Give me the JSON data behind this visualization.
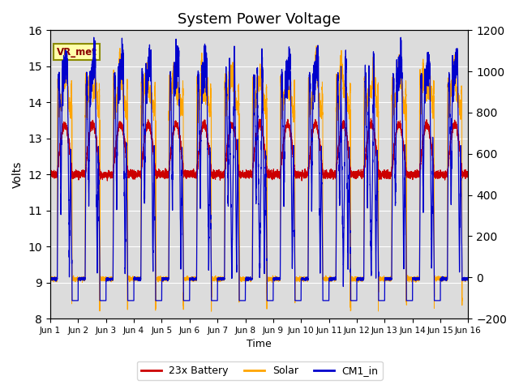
{
  "title": "System Power Voltage",
  "xlabel": "Time",
  "ylabel": "Volts",
  "xlim_days": 15,
  "ylim_left": [
    8.0,
    16.0
  ],
  "ylim_right": [
    -200,
    1200
  ],
  "yticks_left": [
    8.0,
    9.0,
    10.0,
    11.0,
    12.0,
    13.0,
    14.0,
    15.0,
    16.0
  ],
  "yticks_right": [
    -200,
    0,
    200,
    400,
    600,
    800,
    1000,
    1200
  ],
  "background_color": "#dcdcdc",
  "fig_background": "#ffffff",
  "color_battery": "#cc0000",
  "color_solar": "#ffa500",
  "color_cm1": "#0000cc",
  "label_battery": "23x Battery",
  "label_solar": "Solar",
  "label_cm1": "CM1_in",
  "annotation_text": "VR_met",
  "n_days": 15,
  "points_per_day": 480,
  "title_fontsize": 13
}
